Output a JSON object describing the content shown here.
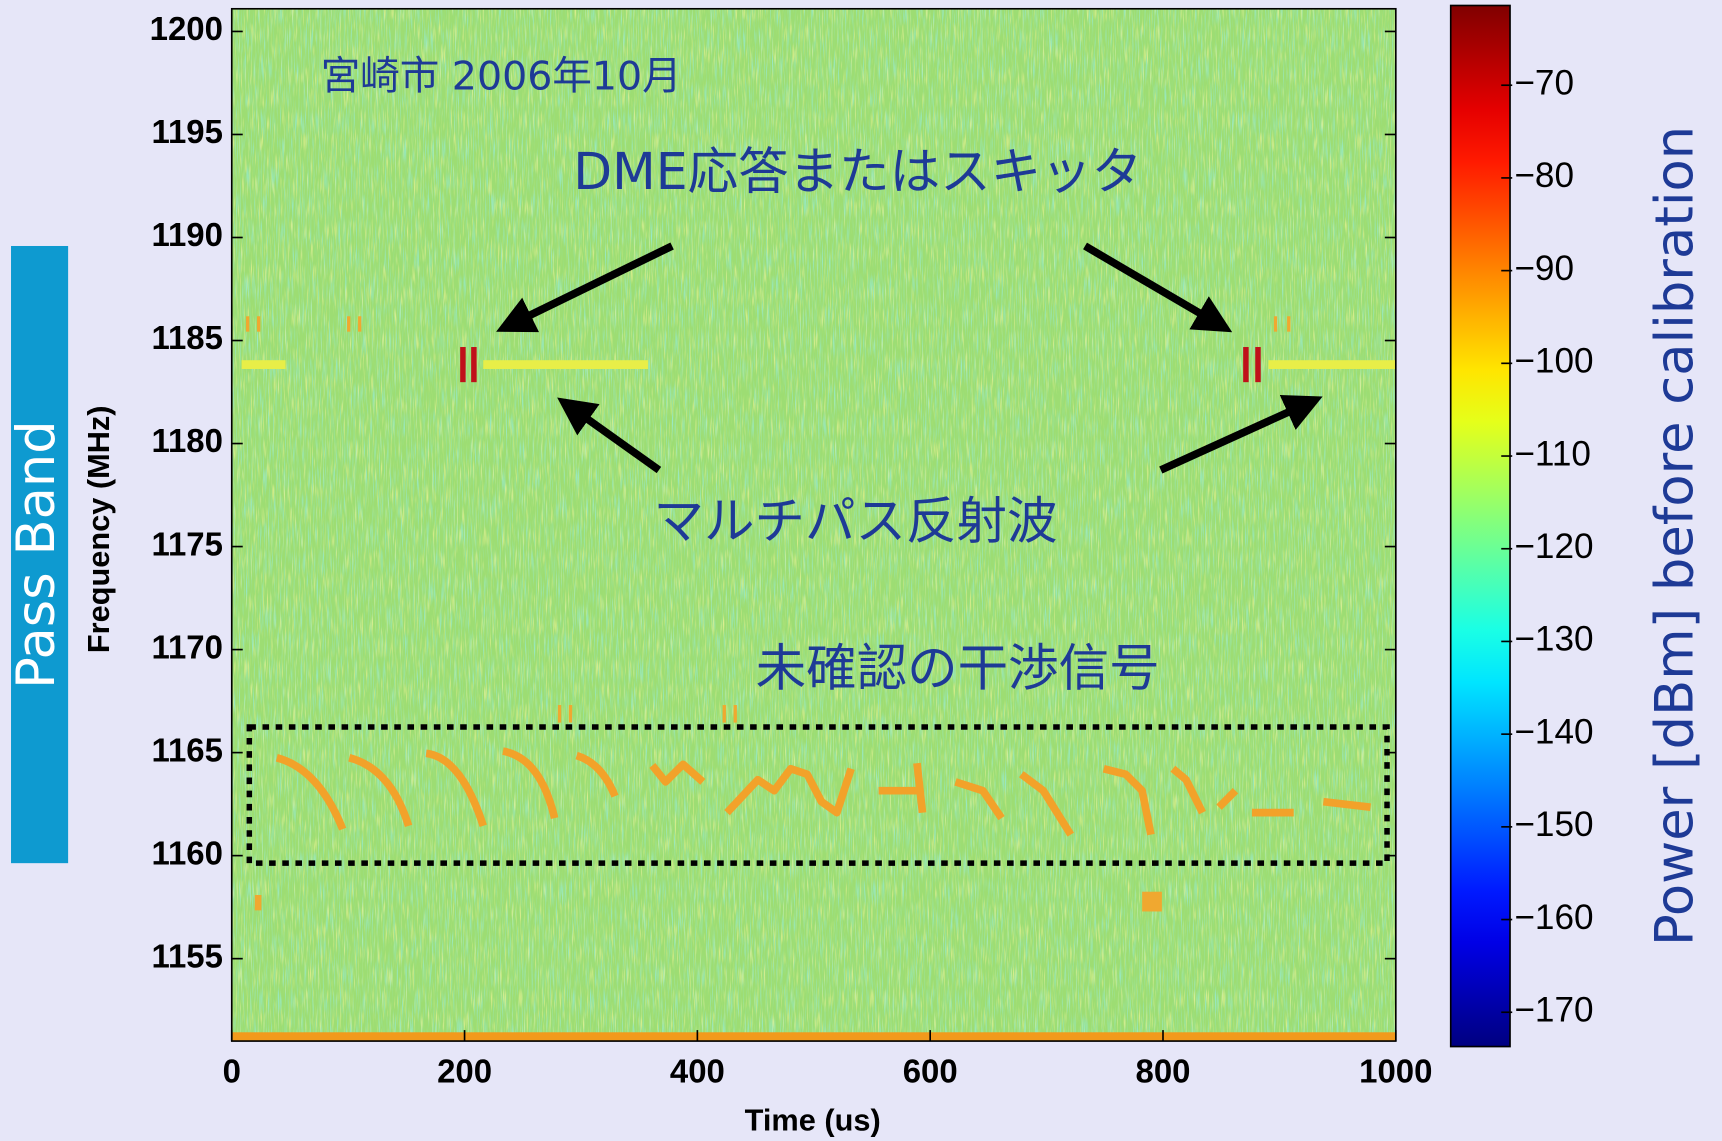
{
  "chart_data": {
    "type": "heatmap",
    "title": "宮崎市 2006年10月",
    "xlabel": "Time (us)",
    "ylabel": "Frequency (MHz)",
    "side_label": "Pass Band",
    "annotations": [
      "DME応答またはスキッタ",
      "マルチパス反射波",
      "未確認の干渉信号"
    ],
    "xlim": [
      0,
      1000
    ],
    "ylim": [
      1151,
      1201.1
    ],
    "xticks": [
      0,
      200,
      400,
      600,
      800,
      1000
    ],
    "yticks": [
      1155,
      1160,
      1165,
      1170,
      1175,
      1180,
      1185,
      1190,
      1195,
      1200
    ],
    "colorbar": {
      "label": "Power [dBm] before calibration",
      "colormap": "jet",
      "clim": [
        -173.7,
        -61.4
      ],
      "ticks": [
        {
          "value": -70,
          "label": "−70"
        },
        {
          "value": -80,
          "label": "−80"
        },
        {
          "value": -90,
          "label": "−90"
        },
        {
          "value": -100,
          "label": "−100"
        },
        {
          "value": -110,
          "label": "−110"
        },
        {
          "value": -120,
          "label": "−120"
        },
        {
          "value": -130,
          "label": "−130"
        },
        {
          "value": -140,
          "label": "−140"
        },
        {
          "value": -150,
          "label": "−150"
        },
        {
          "value": -160,
          "label": "−160"
        },
        {
          "value": -170,
          "label": "−170"
        }
      ]
    }
  }
}
